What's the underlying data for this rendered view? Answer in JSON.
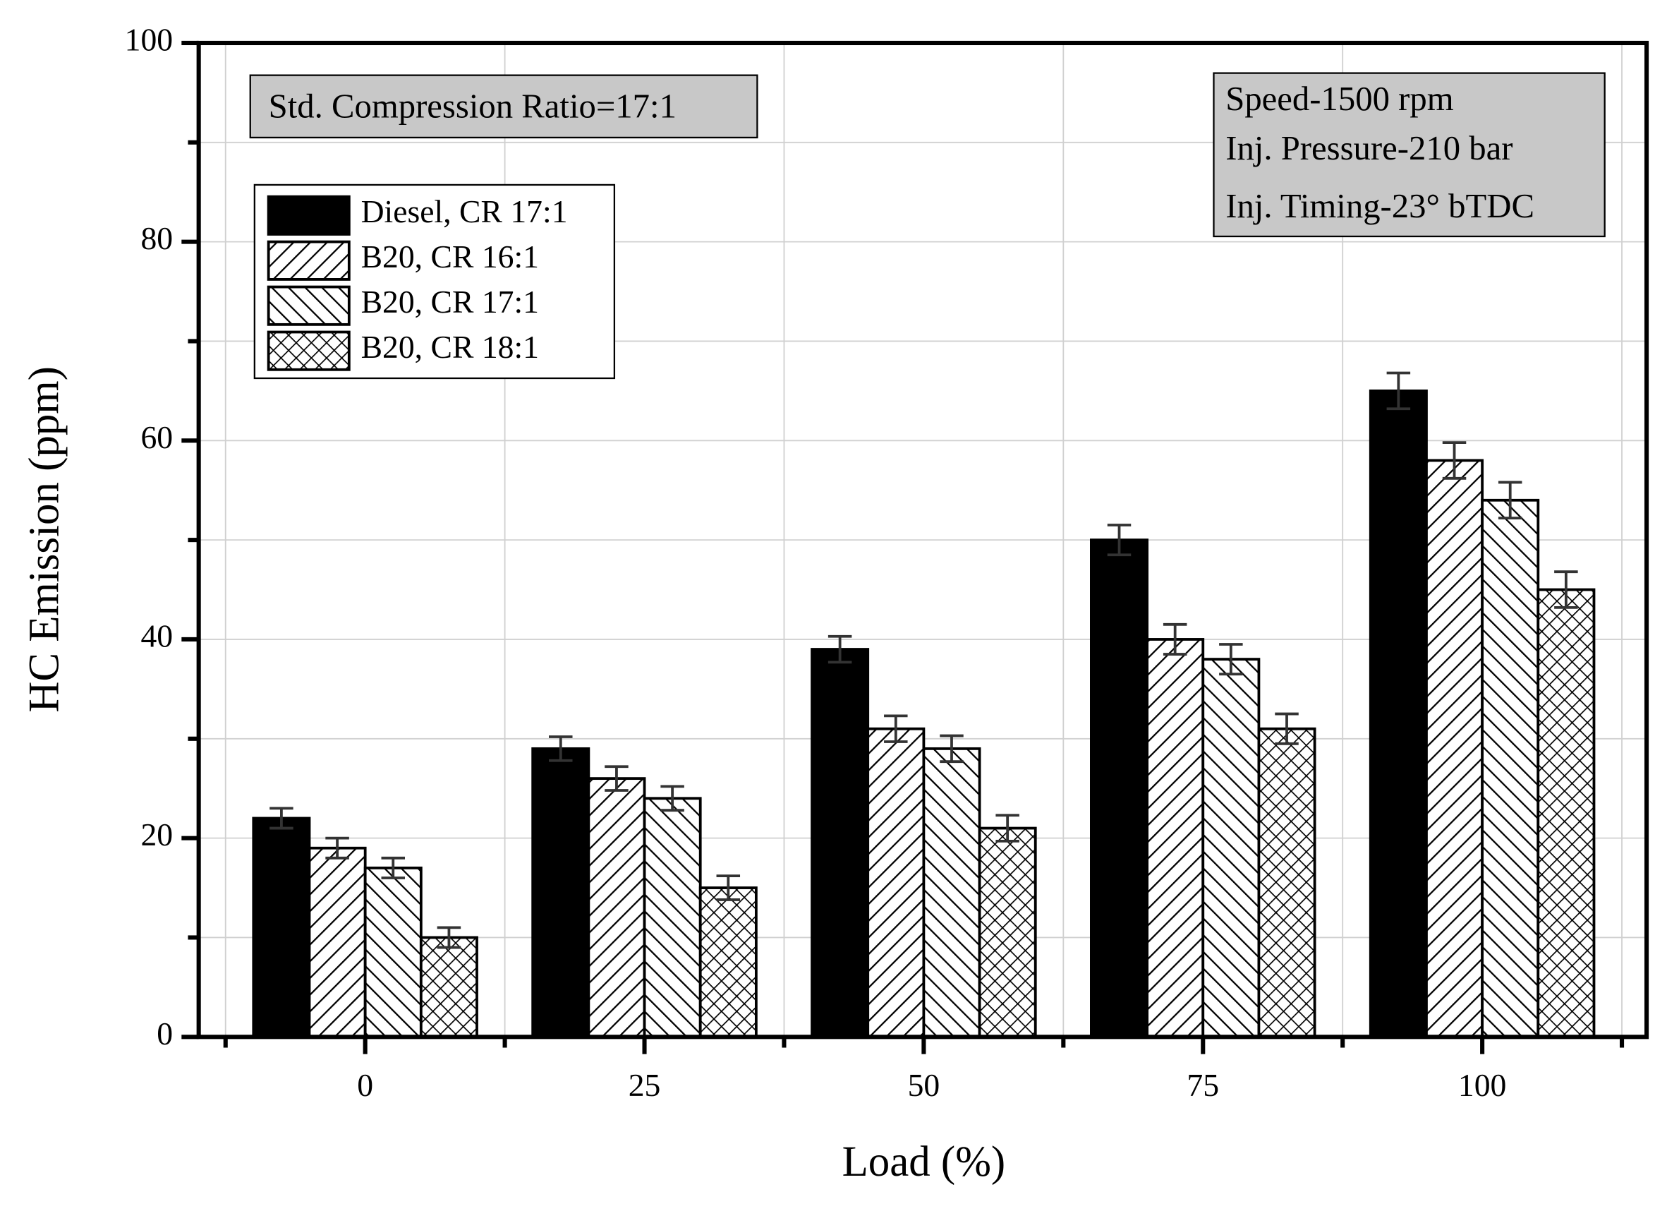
{
  "chart_data": {
    "type": "bar",
    "x_label": "Load (%)",
    "y_label": "HC Emission (ppm)",
    "categories": [
      "0",
      "25",
      "50",
      "75",
      "100"
    ],
    "series": [
      {
        "name": "Diesel, CR 17:1",
        "color": "#000000",
        "pattern": "solid",
        "values": [
          22,
          29,
          39,
          50,
          65
        ],
        "errors": [
          1,
          1.2,
          1.3,
          1.5,
          1.8
        ]
      },
      {
        "name": "B20, CR 16:1",
        "color": "#000000",
        "pattern": "forward-hatch",
        "values": [
          19,
          26,
          31,
          40,
          58
        ],
        "errors": [
          1,
          1.2,
          1.3,
          1.5,
          1.8
        ]
      },
      {
        "name": "B20, CR 17:1",
        "color": "#000000",
        "pattern": "back-hatch",
        "values": [
          17,
          24,
          29,
          38,
          54
        ],
        "errors": [
          1,
          1.2,
          1.3,
          1.5,
          1.8
        ]
      },
      {
        "name": "B20, CR 18:1",
        "color": "#000000",
        "pattern": "cross-hatch",
        "values": [
          10,
          15,
          21,
          31,
          45
        ],
        "errors": [
          1,
          1.2,
          1.3,
          1.5,
          1.8
        ]
      }
    ],
    "ylim": [
      0,
      100
    ],
    "yticks": [
      0,
      20,
      40,
      60,
      80,
      100
    ],
    "yminor_ticks": [
      10,
      30,
      50,
      70,
      90
    ],
    "grid": true,
    "legend": "upper-left",
    "annotations": [
      "Std. Compression Ratio=17:1",
      "Speed-1500 rpm",
      "Inj. Pressure-210 bar",
      "Inj. Timing-23° bTDC"
    ]
  }
}
